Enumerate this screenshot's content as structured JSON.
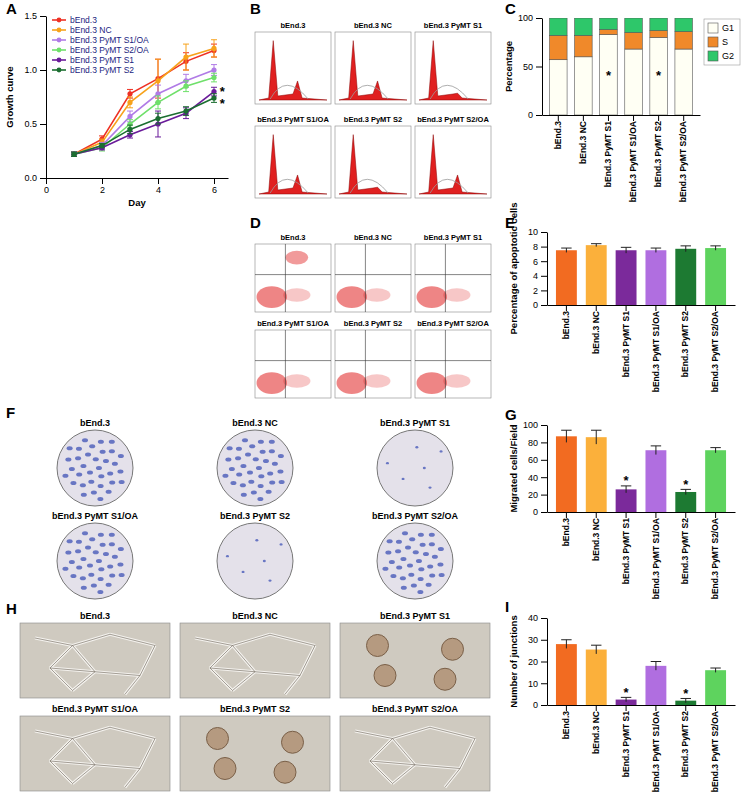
{
  "chart_data": [
    {
      "panel": "A",
      "type": "line",
      "x_label": "Day",
      "y_label": "Growth curve",
      "x": [
        1,
        2,
        3,
        4,
        5,
        6
      ],
      "xlim": [
        0,
        6.5
      ],
      "xticks": [
        0,
        2,
        4,
        6
      ],
      "ylim": [
        0,
        1.5
      ],
      "yticks": [
        {
          "value": 0,
          "label": "0.0"
        },
        0.5,
        {
          "value": 1,
          "label": "1.0"
        },
        1.5
      ],
      "legend": "upper left",
      "marker": "circle",
      "series": [
        {
          "name": "bEnd.3",
          "color": "#ee3124",
          "values": [
            0.22,
            0.36,
            0.78,
            0.92,
            1.08,
            1.18
          ],
          "errors": [
            0.02,
            0.03,
            0.04,
            0.18,
            0.08,
            0.06
          ]
        },
        {
          "name": "bEnd.3 NC",
          "color": "#f7a21b",
          "values": [
            0.22,
            0.33,
            0.7,
            0.9,
            1.12,
            1.2
          ],
          "errors": [
            0.02,
            0.03,
            0.05,
            0.2,
            0.12,
            0.08
          ]
        },
        {
          "name": "bEnd.3 PyMT S1/OA",
          "color": "#b07be6",
          "values": [
            0.22,
            0.3,
            0.57,
            0.78,
            0.9,
            1.0
          ],
          "errors": [
            0.02,
            0.03,
            0.05,
            0.08,
            0.06,
            0.05
          ]
        },
        {
          "name": "bEnd.3 PyMT S2/OA",
          "color": "#6fe06a",
          "values": [
            0.22,
            0.28,
            0.5,
            0.7,
            0.85,
            0.93
          ],
          "errors": [
            0.02,
            0.03,
            0.04,
            0.06,
            0.05,
            0.04
          ]
        },
        {
          "name": "bEnd.3 PyMT S1",
          "color": "#6a1b9a",
          "values": [
            0.22,
            0.28,
            0.4,
            0.5,
            0.6,
            0.8
          ],
          "errors": [
            0.02,
            0.02,
            0.03,
            0.12,
            0.05,
            0.04
          ]
        },
        {
          "name": "bEnd.3 PyMT S2",
          "color": "#1b6e30",
          "values": [
            0.22,
            0.3,
            0.45,
            0.55,
            0.62,
            0.74
          ],
          "errors": [
            0.02,
            0.02,
            0.04,
            0.05,
            0.04,
            0.04
          ]
        }
      ],
      "annotations": [
        {
          "text": "*",
          "x": 6.3,
          "y": 0.83
        },
        {
          "text": "*",
          "x": 6.3,
          "y": 0.72
        }
      ]
    },
    {
      "panel": "C",
      "type": "bar",
      "stacked": true,
      "y_label": "Percentage",
      "legend": "right",
      "categories": [
        "bEnd.3",
        "bEnd.3 NC",
        "bEnd.3 PyMT S1",
        "bEnd.3 PyMT S1/OA",
        "bEnd.3 PyMT S2",
        "bEnd.3 PyMT S2/OA"
      ],
      "ylim": [
        0,
        100
      ],
      "yticks": [
        0,
        50,
        100
      ],
      "series": [
        {
          "name": "G1",
          "color": "#fffff4",
          "values": [
            57,
            60,
            83,
            68,
            80,
            68
          ]
        },
        {
          "name": "S",
          "color": "#f0892a",
          "values": [
            25,
            22,
            5,
            17,
            7,
            18
          ]
        },
        {
          "name": "G2",
          "color": "#2ec76a",
          "values": [
            18,
            18,
            12,
            15,
            13,
            14
          ]
        }
      ],
      "annotations": [
        {
          "text": "*",
          "category": "bEnd.3 PyMT S1",
          "y": 42
        },
        {
          "text": "*",
          "category": "bEnd.3 PyMT S2",
          "y": 42
        }
      ]
    },
    {
      "panel": "E",
      "type": "bar",
      "y_label": "Percentage of apoptotic cells",
      "categories": [
        "bEnd.3",
        "bEnd.3 NC",
        "bEnd.3 PyMT S1",
        "bEnd.3 PyMT S1/OA",
        "bEnd.3 PyMT S2",
        "bEnd.3 PyMT S2/OA"
      ],
      "values": [
        7.5,
        8.2,
        7.5,
        7.5,
        7.7,
        7.8
      ],
      "errors": [
        0.3,
        0.2,
        0.4,
        0.3,
        0.4,
        0.3
      ],
      "colors": [
        "#f26b21",
        "#fbb03b",
        "#7b2a9b",
        "#b06ee0",
        "#1d7a32",
        "#5ed35e"
      ],
      "ylim": [
        0,
        10
      ],
      "yticks": [
        0,
        2,
        4,
        6,
        8,
        10
      ]
    },
    {
      "panel": "G",
      "type": "bar",
      "y_label": "Migrated cells/Field",
      "categories": [
        "bEnd.3",
        "bEnd.3 NC",
        "bEnd.3 PyMT S1",
        "bEnd.3 PyMT S1/OA",
        "bEnd.3 PyMT S2",
        "bEnd.3 PyMT S2/OA"
      ],
      "values": [
        87,
        86,
        26,
        71,
        23,
        71
      ],
      "errors": [
        7,
        8,
        4,
        5,
        3,
        3
      ],
      "colors": [
        "#f26b21",
        "#fbb03b",
        "#7b2a9b",
        "#b06ee0",
        "#1d7a32",
        "#5ed35e"
      ],
      "ylim": [
        0,
        100
      ],
      "yticks": [
        0,
        20,
        40,
        60,
        80,
        100
      ],
      "annotations": [
        {
          "text": "*",
          "category": "bEnd.3 PyMT S1"
        },
        {
          "text": "*",
          "category": "bEnd.3 PyMT S2"
        }
      ]
    },
    {
      "panel": "I",
      "type": "bar",
      "y_label": "Number of junctions",
      "categories": [
        "bEnd.3",
        "bEnd.3 NC",
        "bEnd.3 PyMT S1",
        "bEnd.3 PyMT S1/OA",
        "bEnd.3 PyMT S2",
        "bEnd.3 PyMT S2/OA"
      ],
      "values": [
        28,
        25.5,
        2.5,
        18,
        2,
        16
      ],
      "errors": [
        2,
        2,
        1,
        2,
        1,
        1
      ],
      "colors": [
        "#f26b21",
        "#fbb03b",
        "#7b2a9b",
        "#b06ee0",
        "#1d7a32",
        "#5ed35e"
      ],
      "ylim": [
        0,
        40
      ],
      "yticks": [
        0,
        10,
        20,
        30,
        40
      ],
      "annotations": [
        {
          "text": "*",
          "category": "bEnd.3 PyMT S1"
        },
        {
          "text": "*",
          "category": "bEnd.3 PyMT S2"
        }
      ]
    }
  ],
  "image_panels": [
    {
      "panel": "B",
      "kind": "histogram",
      "labels": [
        "bEnd.3",
        "bEnd.3 NC",
        "bEnd.3 PyMT S1",
        "bEnd.3 PyMT S1/OA",
        "bEnd.3 PyMT S2",
        "bEnd.3 PyMT S2/OA"
      ]
    },
    {
      "panel": "D",
      "kind": "dotplot",
      "labels": [
        "bEnd.3",
        "bEnd.3 NC",
        "bEnd.3 PyMT S1",
        "bEnd.3 PyMT S1/OA",
        "bEnd.3 PyMT S2",
        "bEnd.3 PyMT S2/OA"
      ]
    },
    {
      "panel": "F",
      "kind": "transwell",
      "labels": [
        "bEnd.3",
        "bEnd.3 NC",
        "bEnd.3 PyMT S1",
        "bEnd.3 PyMT S1/OA",
        "bEnd.3 PyMT S2",
        "bEnd.3 PyMT S2/OA"
      ]
    },
    {
      "panel": "H",
      "kind": "micrograph",
      "labels": [
        "bEnd.3",
        "bEnd.3 NC",
        "bEnd.3 PyMT S1",
        "bEnd.3 PyMT S1/OA",
        "bEnd.3 PyMT S2",
        "bEnd.3 PyMT S2/OA"
      ]
    }
  ]
}
